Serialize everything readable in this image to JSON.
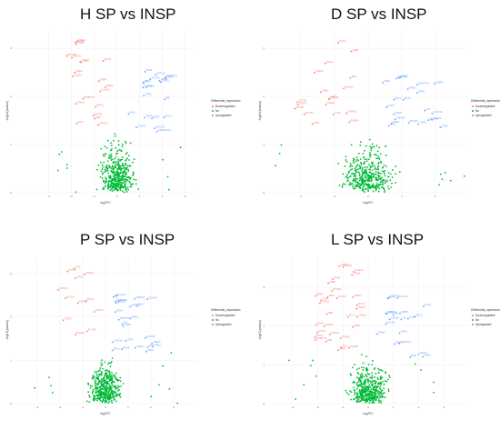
{
  "legend": {
    "title": "Differential_expression",
    "entries": [
      {
        "label": "Downregulated",
        "color": "#f8766d"
      },
      {
        "label": "No",
        "color": "#00ba38"
      },
      {
        "label": "Upregulated",
        "color": "#619cff"
      }
    ]
  },
  "colors": {
    "down": "#f8766d",
    "no": "#00ba38",
    "up": "#619cff",
    "grid": "#ebebeb"
  },
  "chart_data": [
    {
      "type": "scatter",
      "title": "H SP vs INSP",
      "xlabel": "log2FC",
      "ylabel": "-log10(pvalue)",
      "xlim": [
        -4.5,
        3.5
      ],
      "ylim": [
        0,
        3.4
      ],
      "xticks": [
        -3,
        -2,
        -1,
        0,
        1,
        2,
        3
      ],
      "yticks": [
        0,
        1,
        2,
        3
      ],
      "grid": true,
      "legend_position": "right",
      "down_labels": [
        "PVALB",
        "ACTN3",
        "MYH1",
        "TNNT3",
        "MYLPF",
        "CKM",
        "ATP2A1",
        "MYOZ1",
        "TNNI2",
        "MYH2",
        "ENO3",
        "PGAM2",
        "CASQ1",
        "MYBPC2",
        "DES",
        "KLHL41",
        "TCAP",
        "MYOT",
        "LDB3",
        "SMPX"
      ],
      "up_labels": [
        "MYH7",
        "TNNT1",
        "MYL3",
        "TPM3",
        "MYL2",
        "TNNC1",
        "ATP2A2",
        "MYOZ2",
        "CASQ2",
        "TNNI1",
        "MYH7B",
        "LPL",
        "CD36",
        "FABP3",
        "MB",
        "COX7A1",
        "UCP3",
        "PDK4",
        "ANGPTL4",
        "PPARGC1A"
      ]
    },
    {
      "type": "scatter",
      "title": "D SP vs INSP",
      "xlabel": "log2FC",
      "ylabel": "-log10(pvalue)",
      "xlim": [
        -3,
        3
      ],
      "ylim": [
        0,
        3.4
      ],
      "xticks": [
        -2,
        -1,
        0,
        1,
        2
      ],
      "yticks": [
        0,
        1,
        2,
        3
      ],
      "grid": true,
      "legend_position": "right",
      "down_labels": [
        "MYH4",
        "PVALB",
        "ACTN3",
        "MYLPF",
        "TNNT3",
        "ATP2A1",
        "CASQ1",
        "MYOZ1",
        "ENO3",
        "PGAM2",
        "CKM",
        "TNNI2",
        "KLHL41",
        "MYBPC2",
        "TCAP",
        "DES",
        "LDB3",
        "SMPX"
      ],
      "up_labels": [
        "MYH7",
        "TNNT1",
        "MYL3",
        "TPM3",
        "MYL2",
        "TNNC1",
        "ATP2A2",
        "MYOZ2",
        "CASQ2",
        "TNNI1",
        "LPL",
        "CD36",
        "FABP3",
        "MB",
        "COX7A1",
        "UCP3",
        "PDK4",
        "ANGPTL4",
        "SCD",
        "ELOVL6",
        "FASN",
        "ACACA"
      ]
    },
    {
      "type": "scatter",
      "title": "P SP vs INSP",
      "xlabel": "log2FC",
      "ylabel": "-log10(pvalue)",
      "xlim": [
        -4,
        4
      ],
      "ylim": [
        0,
        3.4
      ],
      "xticks": [
        -3,
        -2,
        -1,
        0,
        1,
        2,
        3
      ],
      "yticks": [
        0,
        1,
        2,
        3
      ],
      "grid": true,
      "legend_position": "right",
      "down_labels": [
        "PVALB",
        "ACTN3",
        "MYH1",
        "TNNT3",
        "MYLPF",
        "CKM",
        "ATP2A1",
        "MYOZ1",
        "TNNI2",
        "ENO3",
        "PGAM2",
        "CASQ1"
      ],
      "up_labels": [
        "MYH7",
        "TNNT1",
        "MYL3",
        "TPM3",
        "MYL2",
        "TNNC1",
        "ATP2A2",
        "MYOZ2",
        "CASQ2",
        "TNNI1",
        "LPL",
        "CD36",
        "FABP3",
        "MB",
        "COX7A1",
        "UCP3",
        "PDK4",
        "ANGPTL4",
        "SCD",
        "ELOVL6",
        "FASN",
        "ACACA",
        "ADIPOQ",
        "LEP"
      ]
    },
    {
      "type": "scatter",
      "title": "L SP vs INSP",
      "xlabel": "log2FC",
      "ylabel": "-log10(pvalue)",
      "xlim": [
        -4,
        4
      ],
      "ylim": [
        0,
        3.8
      ],
      "xticks": [
        -3,
        -2,
        -1,
        0,
        1,
        2,
        3
      ],
      "yticks": [
        0,
        1,
        2,
        3
      ],
      "grid": true,
      "legend_position": "right",
      "down_labels": [
        "PVALB",
        "ACTN3",
        "MYH1",
        "TNNT3",
        "MYLPF",
        "CKM",
        "ATP2A1",
        "MYOZ1",
        "TNNI2",
        "ENO3",
        "PGAM2",
        "CASQ1",
        "MYBPC2",
        "DES",
        "KLHL41",
        "TCAP",
        "MYOT",
        "LDB3",
        "SMPX",
        "MYH2",
        "MYH4",
        "ACTA1",
        "MYL1",
        "TPM1",
        "TNNC2",
        "MYOM1",
        "NEB",
        "TTN",
        "CKMT2",
        "ALDOA"
      ],
      "up_labels": [
        "MYH7",
        "TNNT1",
        "MYL3",
        "TPM3",
        "MYL2",
        "TNNC1",
        "ATP2A2",
        "MYOZ2",
        "CASQ2",
        "TNNI1",
        "LPL",
        "CD36",
        "FABP3",
        "MB",
        "COX7A1",
        "UCP3",
        "PDK4",
        "ANGPTL4",
        "SCD",
        "ELOVL6"
      ]
    }
  ]
}
